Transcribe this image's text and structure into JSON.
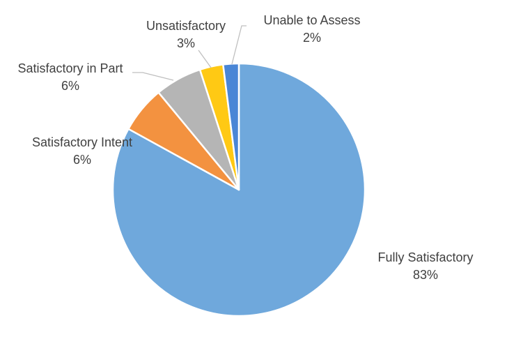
{
  "chart_data": {
    "type": "pie",
    "title": "",
    "start_angle_deg": 0,
    "direction": "clockwise",
    "slices": [
      {
        "name": "Fully Satisfactory",
        "value": 83,
        "label": "83%",
        "color": "#6fa8dc"
      },
      {
        "name": "Satisfactory Intent",
        "value": 6,
        "label": "6%",
        "color": "#f39240"
      },
      {
        "name": "Satisfactory in Part",
        "value": 6,
        "label": "6%",
        "color": "#b5b5b5"
      },
      {
        "name": "Unsatisfactory",
        "value": 3,
        "label": "3%",
        "color": "#ffc914"
      },
      {
        "name": "Unable to Assess",
        "value": 2,
        "label": "2%",
        "color": "#4a86d6"
      }
    ],
    "legend": "none",
    "data_labels": "outside with leader lines"
  }
}
